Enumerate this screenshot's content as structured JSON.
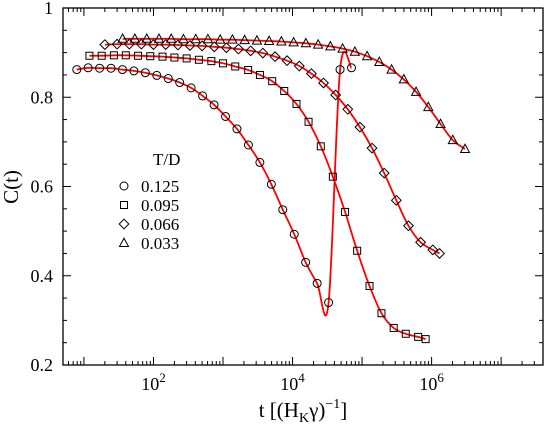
{
  "chart_data": {
    "type": "scatter",
    "xscale": "log",
    "xlim": [
      5,
      40000000
    ],
    "ylim": [
      0.2,
      1.0
    ],
    "xlabel": {
      "main": "t [(H",
      "sub": "K",
      "tail": "γ)",
      "sup": "−1",
      "close": "]"
    },
    "ylabel": "C(t)",
    "x_ticks": [
      {
        "value": 100,
        "base": "10",
        "exp": "2"
      },
      {
        "value": 10000,
        "base": "10",
        "exp": "4"
      },
      {
        "value": 1000000,
        "base": "10",
        "exp": "6"
      }
    ],
    "y_ticks": [
      {
        "value": 0.2,
        "label": "0.2"
      },
      {
        "value": 0.4,
        "label": "0.4"
      },
      {
        "value": 0.6,
        "label": "0.6"
      },
      {
        "value": 0.8,
        "label": "0.8"
      },
      {
        "value": 1.0,
        "label": "1"
      }
    ],
    "grid": false,
    "legend": {
      "title": "T/D",
      "position": "center-left",
      "entries": [
        "0.125",
        "0.095",
        "0.066",
        "0.033"
      ]
    },
    "fit_line_color": "#ff0000",
    "marker_color": "#000000",
    "series": [
      {
        "name": "0.125",
        "marker": "circle",
        "x": [
          7.9,
          11.5,
          16.8,
          24.5,
          35.8,
          52.3,
          76.4,
          111.6,
          163.1,
          238.3,
          348.2,
          508.9,
          743.7,
          1086.7,
          1587.9,
          2320.4,
          3390.8,
          4954.7,
          7240.2,
          10579.8,
          15460.0,
          22591.1,
          33011.9,
          48239.3,
          70490.6
        ],
        "y": [
          0.862,
          0.866,
          0.865,
          0.865,
          0.862,
          0.859,
          0.855,
          0.849,
          0.842,
          0.833,
          0.821,
          0.803,
          0.783,
          0.757,
          0.729,
          0.693,
          0.654,
          0.605,
          0.548,
          0.493,
          0.43,
          0.383,
          0.34,
          0.862,
          0.866
        ]
      },
      {
        "name": "0.095",
        "marker": "square",
        "x": [
          12,
          18,
          27,
          40,
          60,
          90,
          135,
          200,
          300,
          450,
          680,
          1000,
          1500,
          2300,
          3400,
          5100,
          7600,
          11400,
          17000,
          25500,
          38000,
          57000,
          85000,
          128000,
          190000,
          285000,
          425000,
          640000,
          820000
        ],
        "y": [
          0.893,
          0.893,
          0.894,
          0.894,
          0.893,
          0.892,
          0.891,
          0.889,
          0.887,
          0.884,
          0.881,
          0.876,
          0.869,
          0.861,
          0.85,
          0.836,
          0.814,
          0.785,
          0.745,
          0.69,
          0.622,
          0.543,
          0.456,
          0.377,
          0.316,
          0.283,
          0.27,
          0.263,
          0.258
        ]
      },
      {
        "name": "0.066",
        "marker": "diamond",
        "x": [
          20,
          30,
          45,
          67,
          100,
          150,
          225,
          335,
          500,
          750,
          1120,
          1670,
          2500,
          3740,
          5600,
          8350,
          12500,
          18700,
          27900,
          41700,
          62300,
          93200,
          139000,
          208000,
          311000,
          465000,
          695000,
          1040000,
          1300000
        ],
        "y": [
          0.918,
          0.919,
          0.919,
          0.919,
          0.918,
          0.918,
          0.917,
          0.916,
          0.915,
          0.913,
          0.911,
          0.908,
          0.904,
          0.899,
          0.891,
          0.882,
          0.87,
          0.853,
          0.832,
          0.805,
          0.773,
          0.733,
          0.686,
          0.63,
          0.569,
          0.512,
          0.475,
          0.458,
          0.45
        ]
      },
      {
        "name": "0.033",
        "marker": "triangle",
        "x": [
          36,
          54,
          80,
          120,
          180,
          270,
          405,
          607,
          910,
          1365,
          2048,
          3072,
          4608,
          6912,
          10368,
          15552,
          23328,
          34992,
          52488,
          78732,
          118098,
          177147,
          265720,
          398580,
          597870,
          896800,
          1345000,
          2017000,
          3026000
        ],
        "y": [
          0.931,
          0.931,
          0.931,
          0.931,
          0.931,
          0.93,
          0.93,
          0.93,
          0.929,
          0.929,
          0.928,
          0.927,
          0.926,
          0.925,
          0.923,
          0.921,
          0.918,
          0.914,
          0.909,
          0.902,
          0.892,
          0.879,
          0.862,
          0.84,
          0.812,
          0.778,
          0.74,
          0.704,
          0.684
        ]
      }
    ]
  }
}
